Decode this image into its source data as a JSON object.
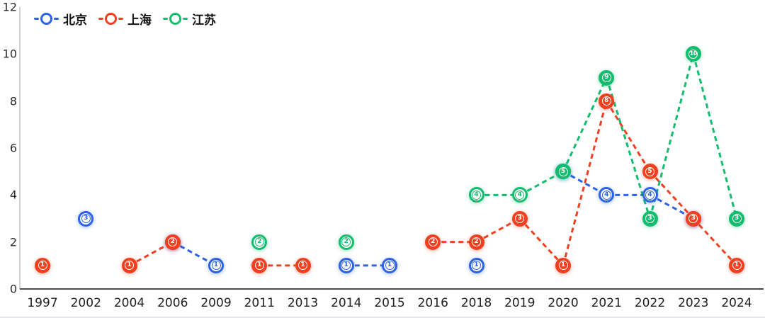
{
  "chart_data": {
    "type": "line",
    "title": "",
    "xlabel": "",
    "ylabel": "",
    "categories": [
      "1997",
      "2002",
      "2004",
      "2006",
      "2009",
      "2011",
      "2013",
      "2014",
      "2015",
      "2016",
      "2018",
      "2019",
      "2020",
      "2021",
      "2022",
      "2023",
      "2024"
    ],
    "ylim": [
      0,
      12
    ],
    "yticks": [
      0,
      2,
      4,
      6,
      8,
      10,
      12
    ],
    "grid": false,
    "legend_position": "top-left",
    "line_style": "dashed",
    "connect_gaps": false,
    "draw_order": [
      "北京",
      "上海",
      "江苏"
    ],
    "series": [
      {
        "name": "北京",
        "color": "#2c62e6",
        "marker_style": "open",
        "values": [
          null,
          3,
          null,
          2,
          1,
          null,
          null,
          1,
          1,
          null,
          1,
          null,
          5,
          4,
          4,
          3,
          null
        ]
      },
      {
        "name": "上海",
        "color": "#f04020",
        "marker_style": "solid",
        "values": [
          1,
          null,
          1,
          2,
          null,
          1,
          1,
          null,
          null,
          2,
          2,
          3,
          1,
          8,
          5,
          3,
          1
        ]
      },
      {
        "name": "江苏",
        "color": "#12bd6e",
        "marker_style": "open",
        "solid_years": [
          "2020",
          "2021",
          "2022",
          "2023",
          "2024"
        ],
        "values": [
          null,
          null,
          null,
          null,
          null,
          2,
          null,
          2,
          null,
          null,
          4,
          4,
          5,
          9,
          3,
          10,
          3
        ]
      }
    ]
  },
  "legend": {
    "items": [
      {
        "label": "北京",
        "color": "#2c62e6"
      },
      {
        "label": "上海",
        "color": "#f04020"
      },
      {
        "label": "江苏",
        "color": "#12bd6e"
      }
    ]
  },
  "axes": {
    "y_axis_color": "#d2d2d2",
    "x_axis_color": "#4d4d4d"
  }
}
